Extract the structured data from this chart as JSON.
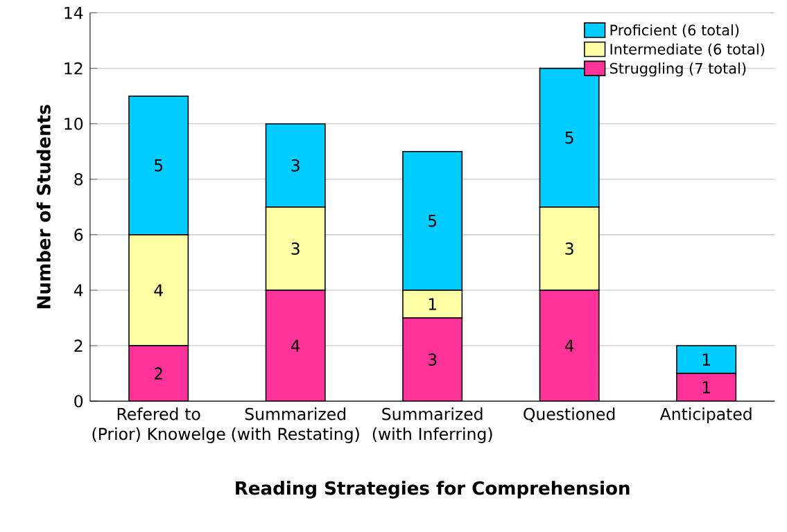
{
  "chart_data": {
    "type": "bar",
    "stacked": true,
    "xlabel": "Reading Strategies for Comprehension",
    "ylabel": "Number of Students",
    "categories": [
      "Refered to (Prior) Knowelge",
      "Summarized (with Restating)",
      "Summarized (with Inferring)",
      "Questioned",
      "Anticipated"
    ],
    "series": [
      {
        "name": "Struggling (7 total)",
        "color": "#ff3399",
        "values": [
          2,
          4,
          3,
          4,
          1
        ],
        "value_labels": [
          "2",
          "4",
          "3",
          "4",
          "1"
        ]
      },
      {
        "name": "Intermediate (6 total)",
        "color": "#ffffa6",
        "values": [
          4,
          3,
          1,
          3,
          0
        ],
        "value_labels": [
          "4",
          "3",
          "1",
          "3",
          null
        ]
      },
      {
        "name": "Proficient (6 total)",
        "color": "#00ccff",
        "values": [
          5,
          3,
          5,
          5,
          1
        ],
        "value_labels": [
          "5",
          "3",
          "5",
          "5",
          "1"
        ]
      }
    ],
    "ylim": [
      0,
      14
    ],
    "yticks": [
      0,
      2,
      4,
      6,
      8,
      10,
      12,
      14
    ],
    "grid": "y",
    "legend": "top right"
  }
}
